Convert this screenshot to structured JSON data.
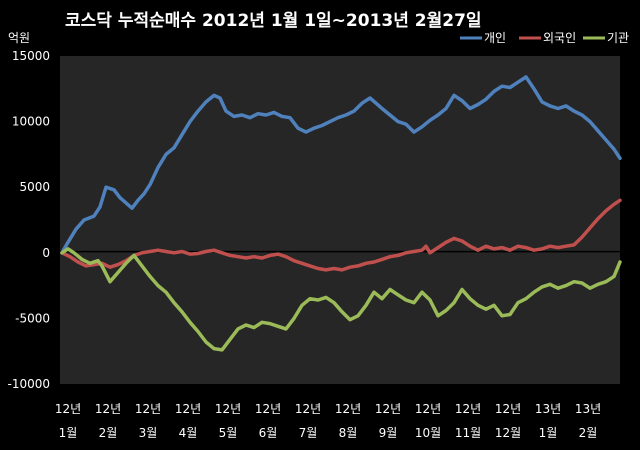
{
  "chart_data": {
    "type": "line",
    "title": "코스닥 누적순매수 2012년 1월 1일~2013년 2월27일",
    "ylabel": "억원",
    "ylim": [
      -10000,
      15000
    ],
    "yticks": [
      15000,
      10000,
      5000,
      0,
      -5000,
      -10000
    ],
    "ytick_labels": [
      "15000",
      "10000",
      "5000",
      "0",
      "-5000",
      "-10000"
    ],
    "x_year_labels": [
      "12년",
      "12년",
      "12년",
      "12년",
      "12년",
      "12년",
      "12년",
      "12년",
      "12년",
      "12년",
      "12년",
      "12년",
      "13년",
      "13년"
    ],
    "x_month_labels": [
      "1월",
      "2월",
      "3월",
      "4월",
      "5월",
      "6월",
      "7월",
      "8월",
      "9월",
      "10월",
      "11월",
      "12월",
      "1월",
      "2월"
    ],
    "grid": false,
    "legend_position": "top-right",
    "series": [
      {
        "name": "개인",
        "color": "#4f81bd",
        "values": [
          [
            0,
            0
          ],
          [
            0.15,
            800
          ],
          [
            0.35,
            1800
          ],
          [
            0.55,
            2500
          ],
          [
            0.8,
            2800
          ],
          [
            0.95,
            3500
          ],
          [
            1.1,
            5000
          ],
          [
            1.3,
            4800
          ],
          [
            1.45,
            4200
          ],
          [
            1.6,
            3800
          ],
          [
            1.75,
            3400
          ],
          [
            1.9,
            4000
          ],
          [
            2.05,
            4500
          ],
          [
            2.2,
            5200
          ],
          [
            2.4,
            6500
          ],
          [
            2.6,
            7500
          ],
          [
            2.8,
            8000
          ],
          [
            3.0,
            9000
          ],
          [
            3.2,
            10000
          ],
          [
            3.4,
            10800
          ],
          [
            3.6,
            11500
          ],
          [
            3.8,
            12000
          ],
          [
            3.95,
            11800
          ],
          [
            4.1,
            10800
          ],
          [
            4.3,
            10400
          ],
          [
            4.5,
            10500
          ],
          [
            4.7,
            10300
          ],
          [
            4.9,
            10600
          ],
          [
            5.1,
            10500
          ],
          [
            5.3,
            10700
          ],
          [
            5.5,
            10400
          ],
          [
            5.7,
            10300
          ],
          [
            5.9,
            9500
          ],
          [
            6.1,
            9200
          ],
          [
            6.3,
            9500
          ],
          [
            6.5,
            9700
          ],
          [
            6.7,
            10000
          ],
          [
            6.9,
            10300
          ],
          [
            7.1,
            10500
          ],
          [
            7.3,
            10800
          ],
          [
            7.5,
            11400
          ],
          [
            7.7,
            11800
          ],
          [
            7.85,
            11400
          ],
          [
            8.0,
            11000
          ],
          [
            8.2,
            10500
          ],
          [
            8.4,
            10000
          ],
          [
            8.6,
            9800
          ],
          [
            8.8,
            9200
          ],
          [
            9.0,
            9600
          ],
          [
            9.2,
            10100
          ],
          [
            9.4,
            10500
          ],
          [
            9.6,
            11000
          ],
          [
            9.8,
            12000
          ],
          [
            10.0,
            11600
          ],
          [
            10.2,
            11000
          ],
          [
            10.4,
            11300
          ],
          [
            10.6,
            11700
          ],
          [
            10.8,
            12300
          ],
          [
            11.0,
            12700
          ],
          [
            11.2,
            12600
          ],
          [
            11.4,
            13000
          ],
          [
            11.6,
            13400
          ],
          [
            11.8,
            12500
          ],
          [
            12.0,
            11500
          ],
          [
            12.2,
            11200
          ],
          [
            12.4,
            11000
          ],
          [
            12.6,
            11200
          ],
          [
            12.8,
            10800
          ],
          [
            13.0,
            10500
          ],
          [
            13.2,
            10000
          ],
          [
            13.4,
            9300
          ],
          [
            13.6,
            8600
          ],
          [
            13.8,
            7900
          ],
          [
            13.95,
            7200
          ]
        ]
      },
      {
        "name": "외국인",
        "color": "#c0504d",
        "values": [
          [
            0,
            0
          ],
          [
            0.2,
            -300
          ],
          [
            0.4,
            -700
          ],
          [
            0.6,
            -1000
          ],
          [
            0.8,
            -900
          ],
          [
            1.0,
            -800
          ],
          [
            1.2,
            -1100
          ],
          [
            1.4,
            -900
          ],
          [
            1.6,
            -600
          ],
          [
            1.8,
            -200
          ],
          [
            2.0,
            0
          ],
          [
            2.2,
            100
          ],
          [
            2.4,
            200
          ],
          [
            2.6,
            100
          ],
          [
            2.8,
            0
          ],
          [
            3.0,
            100
          ],
          [
            3.2,
            -100
          ],
          [
            3.4,
            -50
          ],
          [
            3.6,
            100
          ],
          [
            3.8,
            200
          ],
          [
            4.0,
            0
          ],
          [
            4.2,
            -200
          ],
          [
            4.4,
            -300
          ],
          [
            4.6,
            -400
          ],
          [
            4.8,
            -300
          ],
          [
            5.0,
            -400
          ],
          [
            5.2,
            -200
          ],
          [
            5.4,
            -100
          ],
          [
            5.6,
            -300
          ],
          [
            5.8,
            -600
          ],
          [
            6.0,
            -800
          ],
          [
            6.2,
            -1000
          ],
          [
            6.4,
            -1200
          ],
          [
            6.6,
            -1300
          ],
          [
            6.8,
            -1200
          ],
          [
            7.0,
            -1300
          ],
          [
            7.2,
            -1100
          ],
          [
            7.4,
            -1000
          ],
          [
            7.6,
            -800
          ],
          [
            7.8,
            -700
          ],
          [
            8.0,
            -500
          ],
          [
            8.2,
            -300
          ],
          [
            8.4,
            -200
          ],
          [
            8.6,
            0
          ],
          [
            8.8,
            100
          ],
          [
            9.0,
            200
          ],
          [
            9.1,
            500
          ],
          [
            9.2,
            0
          ],
          [
            9.4,
            400
          ],
          [
            9.6,
            800
          ],
          [
            9.8,
            1100
          ],
          [
            10.0,
            900
          ],
          [
            10.2,
            500
          ],
          [
            10.4,
            200
          ],
          [
            10.6,
            500
          ],
          [
            10.8,
            300
          ],
          [
            11.0,
            400
          ],
          [
            11.2,
            200
          ],
          [
            11.4,
            500
          ],
          [
            11.6,
            400
          ],
          [
            11.8,
            200
          ],
          [
            12.0,
            300
          ],
          [
            12.2,
            500
          ],
          [
            12.4,
            400
          ],
          [
            12.6,
            500
          ],
          [
            12.8,
            600
          ],
          [
            13.0,
            1200
          ],
          [
            13.2,
            1900
          ],
          [
            13.4,
            2600
          ],
          [
            13.6,
            3200
          ],
          [
            13.8,
            3700
          ],
          [
            13.95,
            4000
          ]
        ]
      },
      {
        "name": "기관",
        "color": "#9bbb59",
        "values": [
          [
            0,
            0
          ],
          [
            0.15,
            300
          ],
          [
            0.3,
            0
          ],
          [
            0.5,
            -500
          ],
          [
            0.7,
            -800
          ],
          [
            0.9,
            -600
          ],
          [
            1.0,
            -1000
          ],
          [
            1.2,
            -2200
          ],
          [
            1.4,
            -1500
          ],
          [
            1.6,
            -800
          ],
          [
            1.8,
            -200
          ],
          [
            2.0,
            -1000
          ],
          [
            2.2,
            -1800
          ],
          [
            2.4,
            -2500
          ],
          [
            2.6,
            -3000
          ],
          [
            2.8,
            -3800
          ],
          [
            3.0,
            -4500
          ],
          [
            3.2,
            -5300
          ],
          [
            3.4,
            -6000
          ],
          [
            3.6,
            -6800
          ],
          [
            3.8,
            -7300
          ],
          [
            4.0,
            -7400
          ],
          [
            4.2,
            -6600
          ],
          [
            4.4,
            -5800
          ],
          [
            4.6,
            -5500
          ],
          [
            4.8,
            -5700
          ],
          [
            5.0,
            -5300
          ],
          [
            5.2,
            -5400
          ],
          [
            5.4,
            -5600
          ],
          [
            5.6,
            -5800
          ],
          [
            5.8,
            -5000
          ],
          [
            6.0,
            -4000
          ],
          [
            6.2,
            -3500
          ],
          [
            6.4,
            -3600
          ],
          [
            6.6,
            -3400
          ],
          [
            6.8,
            -3800
          ],
          [
            7.0,
            -4500
          ],
          [
            7.2,
            -5100
          ],
          [
            7.4,
            -4800
          ],
          [
            7.6,
            -4000
          ],
          [
            7.8,
            -3000
          ],
          [
            8.0,
            -3500
          ],
          [
            8.2,
            -2800
          ],
          [
            8.4,
            -3200
          ],
          [
            8.6,
            -3600
          ],
          [
            8.8,
            -3800
          ],
          [
            9.0,
            -3000
          ],
          [
            9.2,
            -3600
          ],
          [
            9.4,
            -4800
          ],
          [
            9.6,
            -4400
          ],
          [
            9.8,
            -3800
          ],
          [
            10.0,
            -2800
          ],
          [
            10.2,
            -3500
          ],
          [
            10.4,
            -4000
          ],
          [
            10.6,
            -4300
          ],
          [
            10.8,
            -4000
          ],
          [
            11.0,
            -4800
          ],
          [
            11.2,
            -4700
          ],
          [
            11.4,
            -3800
          ],
          [
            11.6,
            -3500
          ],
          [
            11.8,
            -3000
          ],
          [
            12.0,
            -2600
          ],
          [
            12.2,
            -2400
          ],
          [
            12.4,
            -2700
          ],
          [
            12.6,
            -2500
          ],
          [
            12.8,
            -2200
          ],
          [
            13.0,
            -2300
          ],
          [
            13.2,
            -2700
          ],
          [
            13.4,
            -2400
          ],
          [
            13.6,
            -2200
          ],
          [
            13.8,
            -1800
          ],
          [
            13.95,
            -700
          ]
        ]
      }
    ]
  }
}
